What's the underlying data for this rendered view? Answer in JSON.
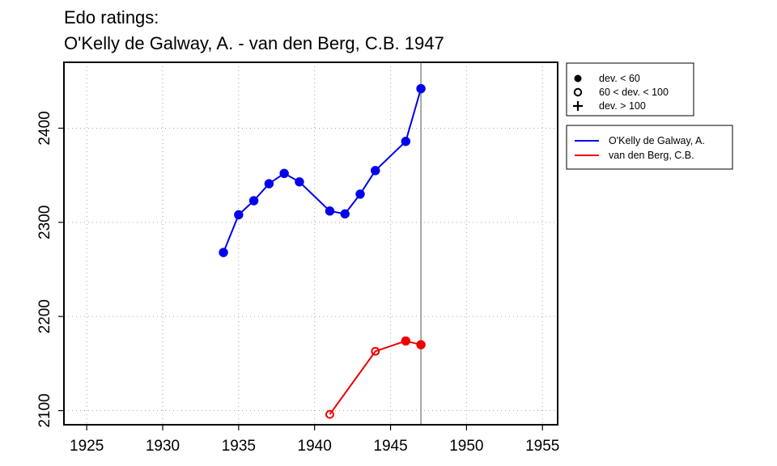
{
  "chart_data": {
    "type": "line",
    "title_lines": [
      "Edo ratings:",
      "O'Kelly de Galway, A. - van den Berg, C.B. 1947"
    ],
    "xlabel": "",
    "ylabel": "",
    "xlim": [
      1923.5,
      1956
    ],
    "ylim": [
      2085,
      2470
    ],
    "xticks": [
      1925,
      1930,
      1935,
      1940,
      1945,
      1950,
      1955
    ],
    "yticks": [
      2100,
      2200,
      2300,
      2400
    ],
    "grid": true,
    "reference_line_x": 1947,
    "series": [
      {
        "name": "O'Kelly de Galway, A.",
        "color": "#0000ee",
        "x": [
          1934,
          1935,
          1936,
          1937,
          1938,
          1939,
          1941,
          1942,
          1943,
          1944,
          1946,
          1947
        ],
        "y": [
          2268,
          2308,
          2323,
          2341,
          2352,
          2343,
          2312,
          2309,
          2330,
          2355,
          2386,
          2442
        ],
        "markers": [
          "solid",
          "solid",
          "solid",
          "solid",
          "solid",
          "solid",
          "solid",
          "solid",
          "solid",
          "solid",
          "solid",
          "solid"
        ]
      },
      {
        "name": "van den Berg, C.B.",
        "color": "#ee0000",
        "x": [
          1941,
          1944,
          1946,
          1947
        ],
        "y": [
          2096,
          2163,
          2174,
          2170
        ],
        "markers": [
          "open",
          "open",
          "solid",
          "solid"
        ]
      }
    ],
    "marker_legend": [
      {
        "symbol": "solid",
        "label": "dev. < 60"
      },
      {
        "symbol": "open",
        "label": "60 < dev. < 100"
      },
      {
        "symbol": "plus",
        "label": "dev. > 100"
      }
    ],
    "legend_position": "right"
  }
}
